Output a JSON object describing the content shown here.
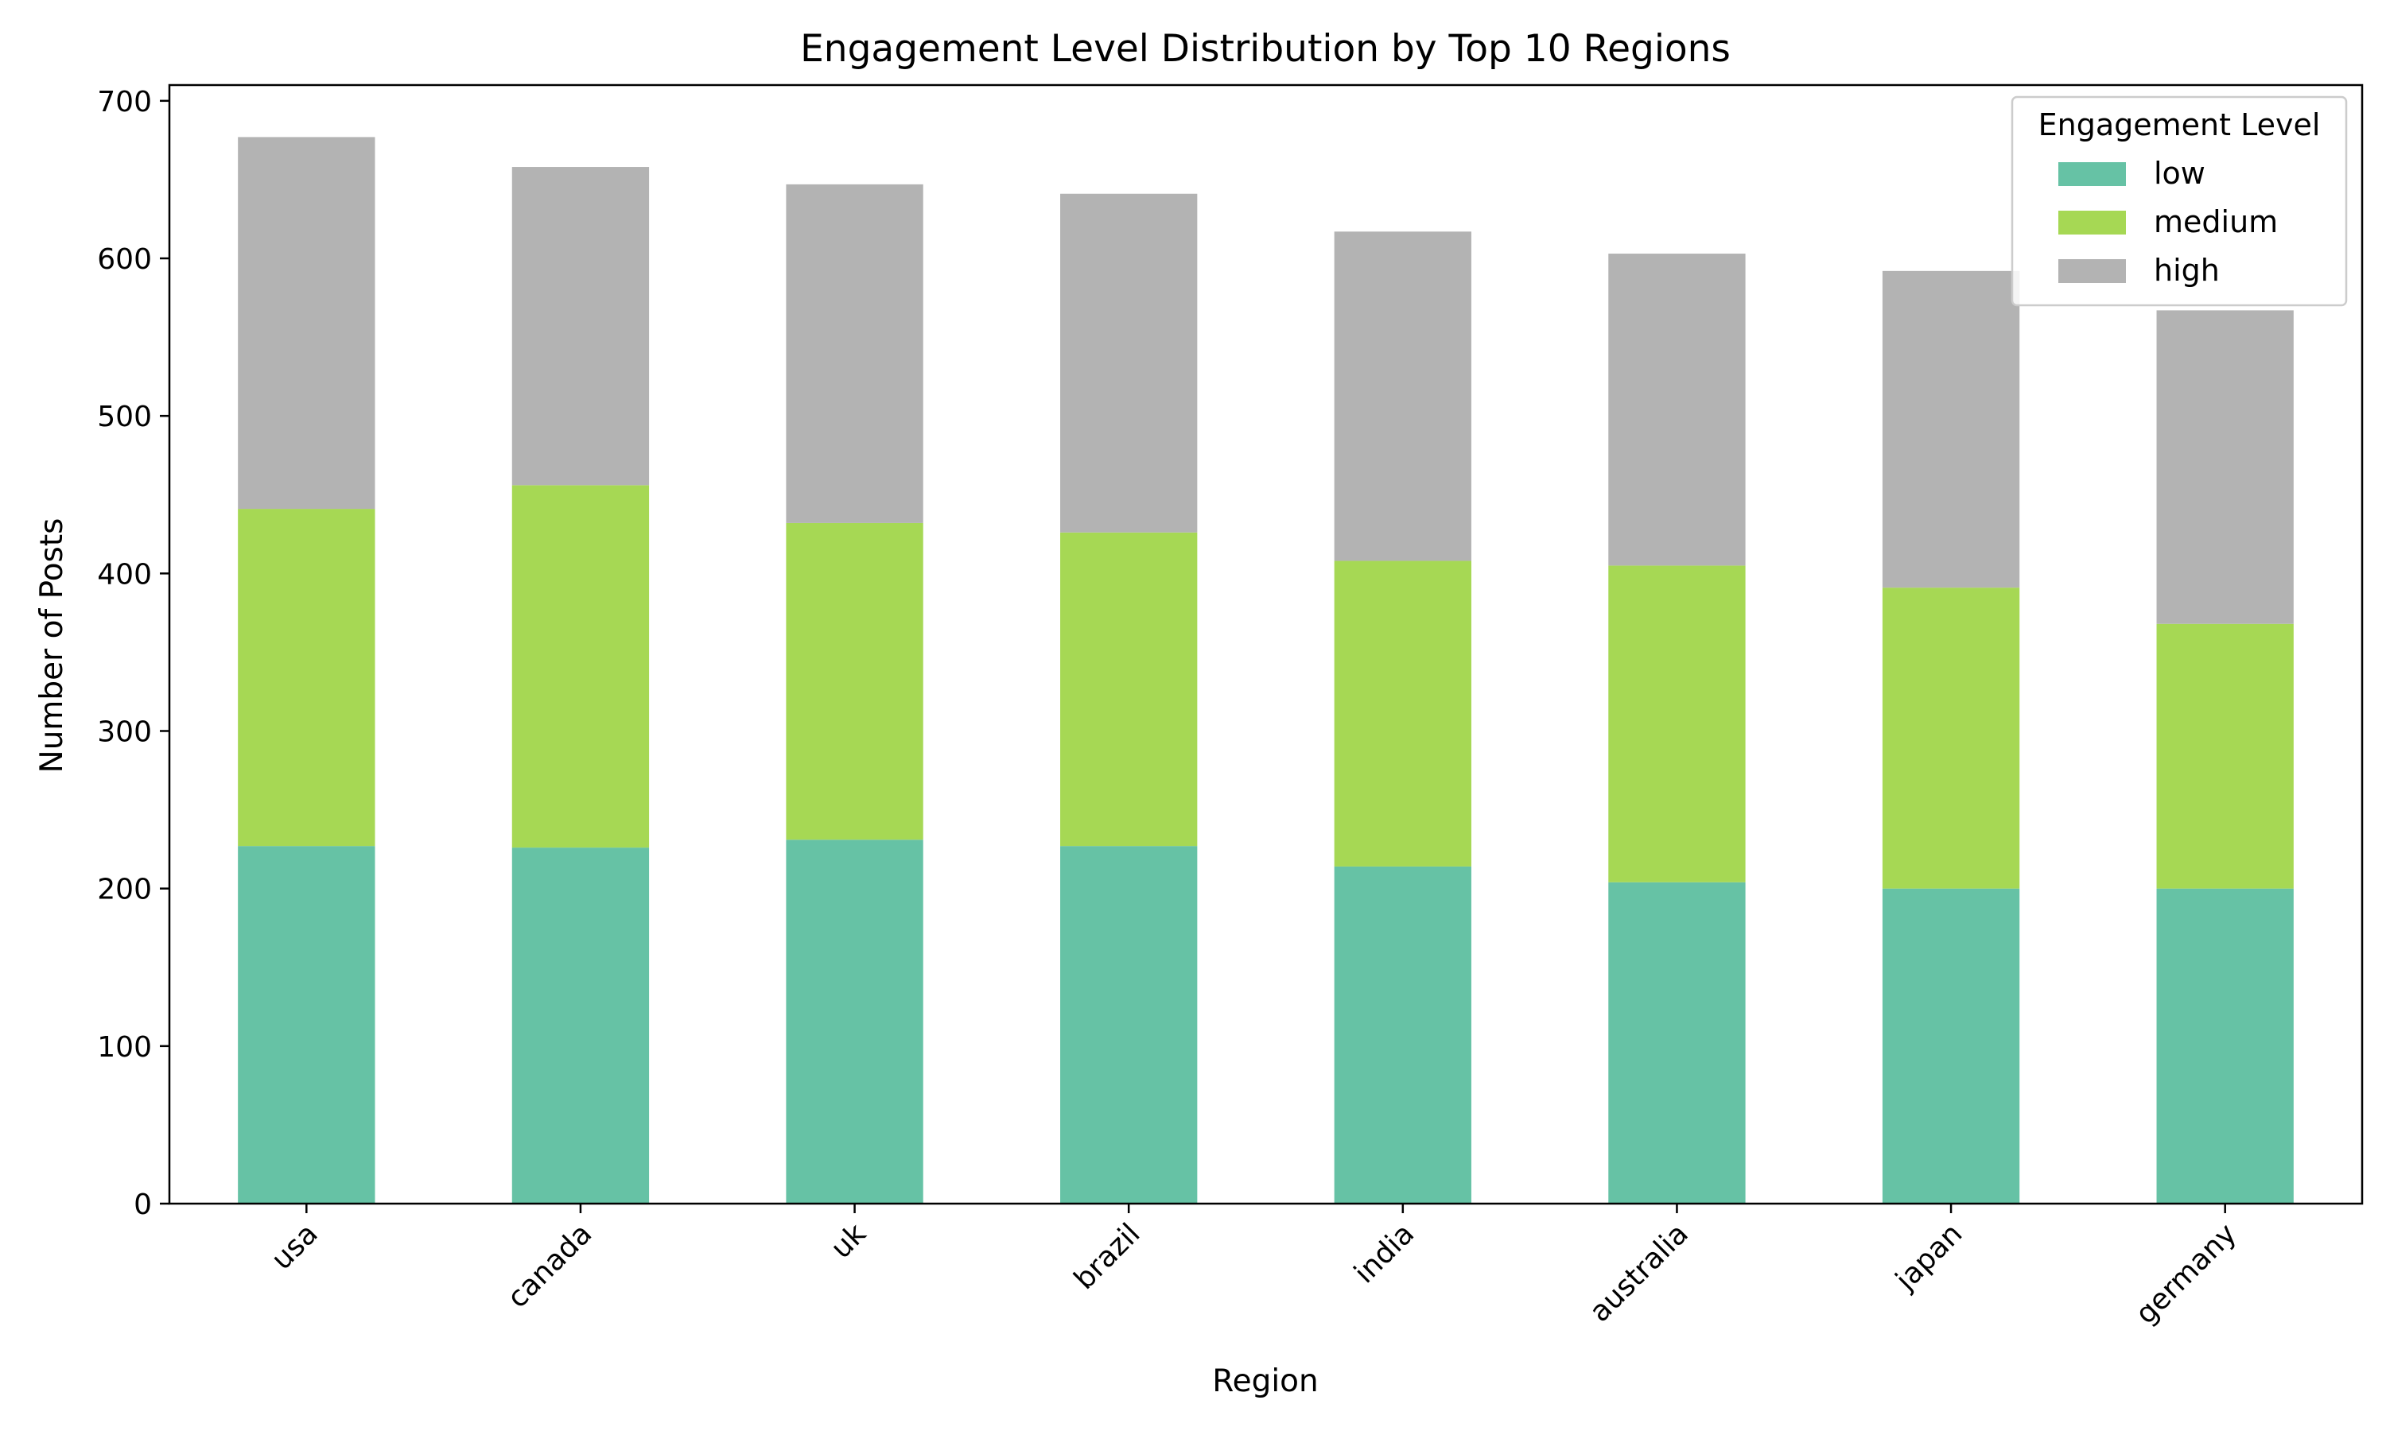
{
  "chart_data": {
    "type": "bar",
    "stacked": true,
    "title": "Engagement Level Distribution by Top 10 Regions",
    "xlabel": "Region",
    "ylabel": "Number of Posts",
    "categories": [
      "usa",
      "canada",
      "uk",
      "brazil",
      "india",
      "australia",
      "japan",
      "germany"
    ],
    "ylim": [
      0,
      710
    ],
    "yticks": [
      0,
      100,
      200,
      300,
      400,
      500,
      600,
      700
    ],
    "grid": false,
    "legend": {
      "title": "Engagement Level",
      "placement": "top-right"
    },
    "series": [
      {
        "name": "low",
        "color": "#66c2a5",
        "values": [
          227,
          226,
          231,
          227,
          214,
          204,
          200,
          200
        ]
      },
      {
        "name": "medium",
        "color": "#a6d854",
        "values": [
          214,
          230,
          201,
          199,
          194,
          201,
          191,
          168
        ]
      },
      {
        "name": "high",
        "color": "#b3b3b3",
        "values": [
          236,
          202,
          215,
          215,
          209,
          198,
          201,
          199
        ]
      }
    ]
  }
}
